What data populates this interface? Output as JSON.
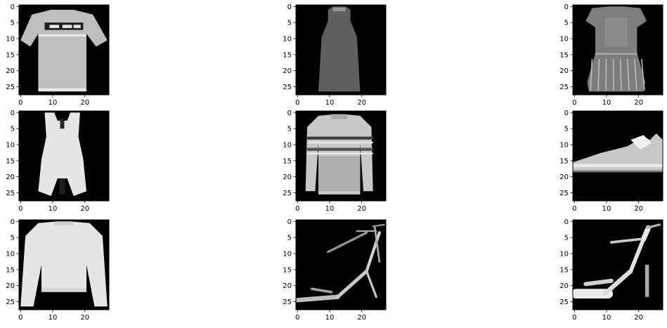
{
  "figure": {
    "background": "#ffffff",
    "image_background": "#000000",
    "tick_color": "#000000",
    "axis_limits": {
      "x": [
        -0.5,
        27.5
      ],
      "y": [
        27.5,
        -0.5
      ]
    },
    "x_ticks": [
      0,
      10,
      20
    ],
    "x_tick_labels": [
      "0",
      "10",
      "20"
    ],
    "y_ticks": [
      0,
      5,
      10,
      15,
      20,
      25
    ],
    "y_tick_labels": [
      "0",
      "5",
      "10",
      "15",
      "20",
      "25"
    ],
    "grid": {
      "rows": 3,
      "cols": 3
    },
    "panels": [
      {
        "subject": "t-shirt",
        "row": 0,
        "col": 0
      },
      {
        "subject": "dress",
        "row": 0,
        "col": 1
      },
      {
        "subject": "dress",
        "row": 0,
        "col": 2
      },
      {
        "subject": "dress",
        "row": 1,
        "col": 0
      },
      {
        "subject": "pullover",
        "row": 1,
        "col": 1
      },
      {
        "subject": "sneaker",
        "row": 1,
        "col": 2
      },
      {
        "subject": "pullover",
        "row": 2,
        "col": 0
      },
      {
        "subject": "sandal",
        "row": 2,
        "col": 1
      },
      {
        "subject": "sandal",
        "row": 2,
        "col": 2
      }
    ]
  }
}
